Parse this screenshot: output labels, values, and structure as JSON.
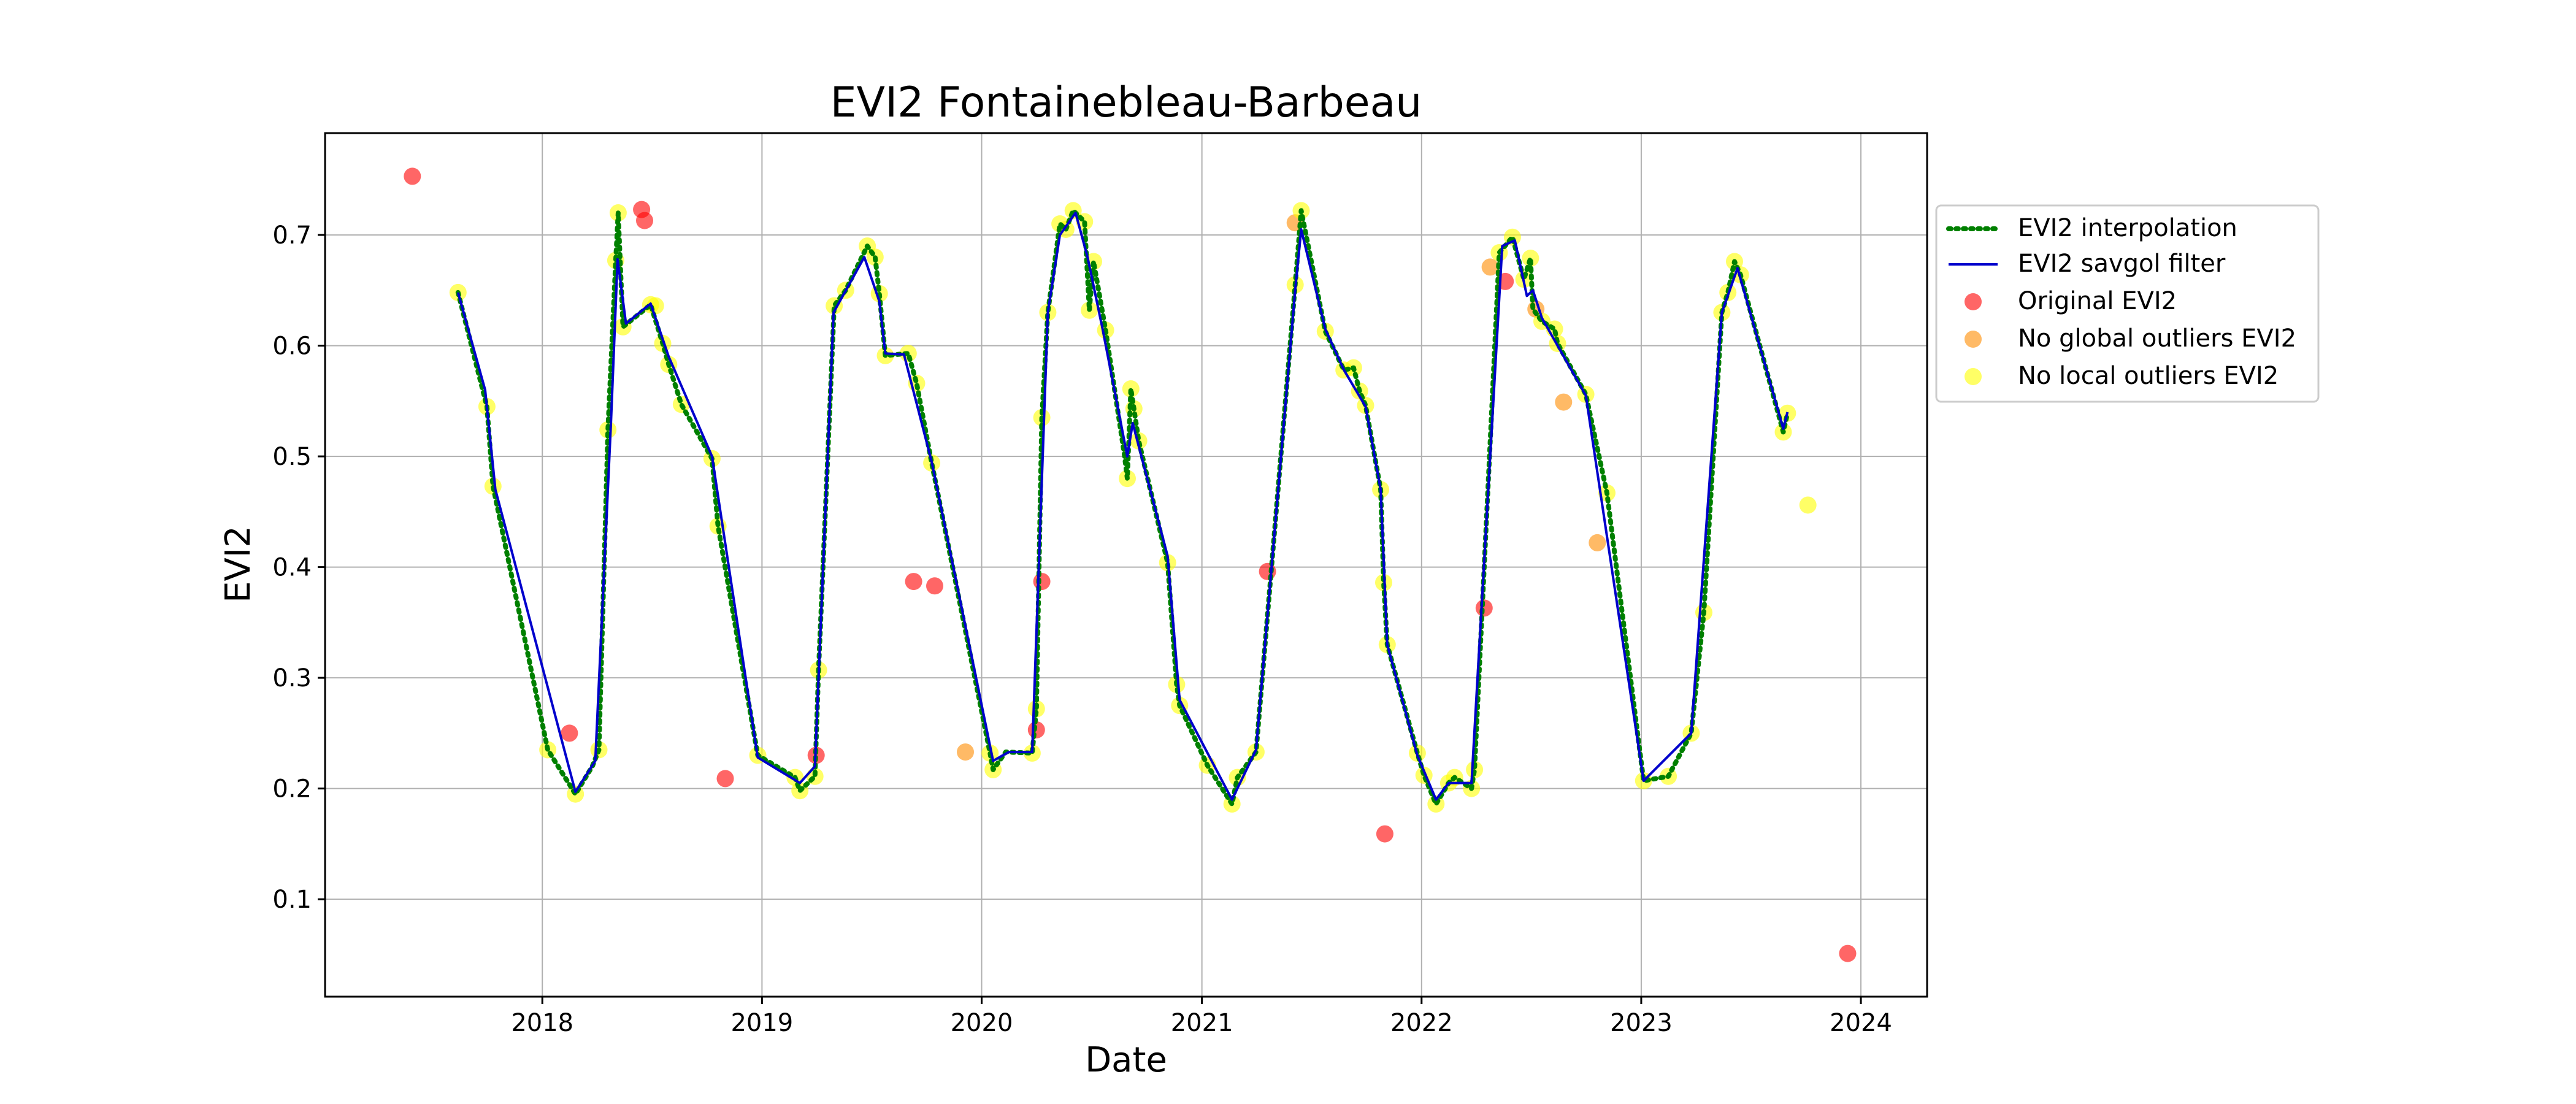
{
  "chart_data": {
    "type": "scatter",
    "title": "EVI2 Fontainebleau-Barbeau",
    "xlabel": "Date",
    "ylabel": "EVI2",
    "xlim": [
      "2017-01-05",
      "2024-04-20"
    ],
    "ylim": [
      0.012,
      0.792
    ],
    "x_ticks": [
      "2018",
      "2019",
      "2020",
      "2021",
      "2022",
      "2023",
      "2024"
    ],
    "y_ticks": [
      "0.1",
      "0.2",
      "0.3",
      "0.4",
      "0.5",
      "0.6",
      "0.7"
    ],
    "grid": true,
    "legend_position": "outside-right",
    "colors": {
      "interpolation": "#008000",
      "savgol": "#0000cc",
      "original": "#ff0000",
      "no_global": "#ff8c00",
      "no_local": "#ffff00",
      "grid": "#b0b0b0"
    },
    "series": [
      {
        "name": "EVI2 interpolation",
        "style": "dotted-line",
        "points": [
          [
            "2017-08-14",
            0.648
          ],
          [
            "2017-10-01",
            0.545
          ],
          [
            "2017-10-11",
            0.473
          ],
          [
            "2018-01-10",
            0.235
          ],
          [
            "2018-02-25",
            0.195
          ],
          [
            "2018-03-25",
            0.22
          ],
          [
            "2018-04-05",
            0.235
          ],
          [
            "2018-04-20",
            0.524
          ],
          [
            "2018-05-03",
            0.677
          ],
          [
            "2018-05-07",
            0.72
          ],
          [
            "2018-05-15",
            0.617
          ],
          [
            "2018-06-30",
            0.637
          ],
          [
            "2018-07-20",
            0.602
          ],
          [
            "2018-07-30",
            0.583
          ],
          [
            "2018-08-20",
            0.547
          ],
          [
            "2018-10-10",
            0.498
          ],
          [
            "2018-10-20",
            0.437
          ],
          [
            "2018-12-25",
            0.23
          ],
          [
            "2019-02-25",
            0.21
          ],
          [
            "2019-03-05",
            0.198
          ],
          [
            "2019-03-30",
            0.211
          ],
          [
            "2019-04-05",
            0.307
          ],
          [
            "2019-05-01",
            0.636
          ],
          [
            "2019-05-20",
            0.65
          ],
          [
            "2019-06-25",
            0.69
          ],
          [
            "2019-07-08",
            0.68
          ],
          [
            "2019-07-15",
            0.647
          ],
          [
            "2019-07-25",
            0.591
          ],
          [
            "2019-09-01",
            0.593
          ],
          [
            "2019-09-15",
            0.566
          ],
          [
            "2019-10-10",
            0.494
          ],
          [
            "2020-01-15",
            0.232
          ],
          [
            "2020-01-20",
            0.217
          ],
          [
            "2020-02-10",
            0.233
          ],
          [
            "2020-03-25",
            0.232
          ],
          [
            "2020-04-01",
            0.272
          ],
          [
            "2020-04-10",
            0.535
          ],
          [
            "2020-04-20",
            0.63
          ],
          [
            "2020-05-10",
            0.71
          ],
          [
            "2020-05-20",
            0.705
          ],
          [
            "2020-06-01",
            0.722
          ],
          [
            "2020-06-20",
            0.712
          ],
          [
            "2020-06-28",
            0.632
          ],
          [
            "2020-07-05",
            0.676
          ],
          [
            "2020-07-25",
            0.614
          ],
          [
            "2020-08-25",
            0.502
          ],
          [
            "2020-08-30",
            0.48
          ],
          [
            "2020-09-05",
            0.561
          ],
          [
            "2020-09-10",
            0.543
          ],
          [
            "2020-09-18",
            0.514
          ],
          [
            "2020-11-05",
            0.404
          ],
          [
            "2020-11-20",
            0.294
          ],
          [
            "2020-11-25",
            0.275
          ],
          [
            "2021-01-10",
            0.221
          ],
          [
            "2021-02-20",
            0.186
          ],
          [
            "2021-03-01",
            0.21
          ],
          [
            "2021-04-01",
            0.233
          ],
          [
            "2021-06-05",
            0.655
          ],
          [
            "2021-06-15",
            0.722
          ],
          [
            "2021-07-25",
            0.613
          ],
          [
            "2021-08-25",
            0.578
          ],
          [
            "2021-09-10",
            0.58
          ],
          [
            "2021-09-20",
            0.559
          ],
          [
            "2021-09-30",
            0.546
          ],
          [
            "2021-10-25",
            0.47
          ],
          [
            "2021-10-30",
            0.386
          ],
          [
            "2021-11-05",
            0.33
          ],
          [
            "2021-12-25",
            0.232
          ],
          [
            "2022-01-05",
            0.212
          ],
          [
            "2022-01-25",
            0.186
          ],
          [
            "2022-02-15",
            0.205
          ],
          [
            "2022-02-25",
            0.21
          ],
          [
            "2022-03-25",
            0.2
          ],
          [
            "2022-03-30",
            0.217
          ],
          [
            "2022-05-10",
            0.684
          ],
          [
            "2022-06-01",
            0.698
          ],
          [
            "2022-06-20",
            0.66
          ],
          [
            "2022-07-01",
            0.679
          ],
          [
            "2022-07-05",
            0.633
          ],
          [
            "2022-07-20",
            0.622
          ],
          [
            "2022-08-10",
            0.615
          ],
          [
            "2022-08-15",
            0.602
          ],
          [
            "2022-10-01",
            0.556
          ],
          [
            "2022-11-05",
            0.467
          ],
          [
            "2023-01-05",
            0.207
          ],
          [
            "2023-02-15",
            0.211
          ],
          [
            "2023-03-25",
            0.25
          ],
          [
            "2023-04-15",
            0.359
          ],
          [
            "2023-05-15",
            0.63
          ],
          [
            "2023-05-25",
            0.648
          ],
          [
            "2023-06-05",
            0.676
          ],
          [
            "2023-06-15",
            0.664
          ],
          [
            "2023-08-25",
            0.522
          ],
          [
            "2023-09-01",
            0.539
          ]
        ]
      },
      {
        "name": "EVI2 savgol filter",
        "style": "solid-line",
        "points": [
          [
            "2017-08-14",
            0.648
          ],
          [
            "2017-09-28",
            0.56
          ],
          [
            "2017-10-15",
            0.47
          ],
          [
            "2018-02-25",
            0.197
          ],
          [
            "2018-03-30",
            0.225
          ],
          [
            "2018-04-25",
            0.53
          ],
          [
            "2018-05-06",
            0.678
          ],
          [
            "2018-05-20",
            0.62
          ],
          [
            "2018-06-30",
            0.638
          ],
          [
            "2018-07-30",
            0.59
          ],
          [
            "2018-10-10",
            0.5
          ],
          [
            "2018-12-25",
            0.228
          ],
          [
            "2019-03-05",
            0.205
          ],
          [
            "2019-03-30",
            0.22
          ],
          [
            "2019-04-30",
            0.63
          ],
          [
            "2019-06-20",
            0.68
          ],
          [
            "2019-07-15",
            0.64
          ],
          [
            "2019-07-25",
            0.593
          ],
          [
            "2019-08-25",
            0.592
          ],
          [
            "2019-10-10",
            0.495
          ],
          [
            "2020-01-20",
            0.225
          ],
          [
            "2020-02-15",
            0.233
          ],
          [
            "2020-03-25",
            0.233
          ],
          [
            "2020-04-20",
            0.63
          ],
          [
            "2020-05-10",
            0.7
          ],
          [
            "2020-06-05",
            0.72
          ],
          [
            "2020-06-25",
            0.68
          ],
          [
            "2020-07-20",
            0.615
          ],
          [
            "2020-08-30",
            0.5
          ],
          [
            "2020-09-08",
            0.53
          ],
          [
            "2020-11-05",
            0.41
          ],
          [
            "2020-11-25",
            0.28
          ],
          [
            "2021-02-20",
            0.19
          ],
          [
            "2021-04-01",
            0.235
          ],
          [
            "2021-06-05",
            0.65
          ],
          [
            "2021-06-15",
            0.705
          ],
          [
            "2021-07-25",
            0.615
          ],
          [
            "2021-08-25",
            0.578
          ],
          [
            "2021-09-30",
            0.545
          ],
          [
            "2021-10-25",
            0.47
          ],
          [
            "2021-11-05",
            0.33
          ],
          [
            "2021-12-25",
            0.23
          ],
          [
            "2022-01-25",
            0.19
          ],
          [
            "2022-02-15",
            0.205
          ],
          [
            "2022-03-25",
            0.205
          ],
          [
            "2022-05-15",
            0.69
          ],
          [
            "2022-06-05",
            0.695
          ],
          [
            "2022-06-25",
            0.645
          ],
          [
            "2022-07-05",
            0.65
          ],
          [
            "2022-07-20",
            0.625
          ],
          [
            "2022-10-01",
            0.555
          ],
          [
            "2023-01-05",
            0.207
          ],
          [
            "2023-03-25",
            0.25
          ],
          [
            "2023-05-15",
            0.63
          ],
          [
            "2023-06-10",
            0.67
          ],
          [
            "2023-08-25",
            0.525
          ],
          [
            "2023-09-01",
            0.54
          ]
        ]
      },
      {
        "name": "Original EVI2",
        "style": "marker",
        "points": [
          [
            "2017-05-30",
            0.753
          ],
          [
            "2018-02-15",
            0.25
          ],
          [
            "2018-06-15",
            0.723
          ],
          [
            "2018-06-20",
            0.713
          ],
          [
            "2018-11-01",
            0.209
          ],
          [
            "2019-04-01",
            0.23
          ],
          [
            "2019-09-10",
            0.387
          ],
          [
            "2019-10-15",
            0.383
          ],
          [
            "2020-04-01",
            0.253
          ],
          [
            "2020-04-10",
            0.387
          ],
          [
            "2021-04-20",
            0.396
          ],
          [
            "2021-11-01",
            0.159
          ],
          [
            "2022-04-15",
            0.363
          ],
          [
            "2022-05-20",
            0.658
          ],
          [
            "2023-12-10",
            0.051
          ]
        ]
      },
      {
        "name": "No global outliers EVI2",
        "style": "marker",
        "points": [
          [
            "2019-12-05",
            0.233
          ],
          [
            "2021-06-05",
            0.711
          ],
          [
            "2022-04-25",
            0.671
          ],
          [
            "2022-07-10",
            0.633
          ],
          [
            "2022-08-25",
            0.549
          ],
          [
            "2022-10-20",
            0.422
          ]
        ]
      },
      {
        "name": "No local outliers EVI2",
        "style": "marker",
        "points": [
          [
            "2017-08-14",
            0.648
          ],
          [
            "2017-10-01",
            0.545
          ],
          [
            "2017-10-11",
            0.473
          ],
          [
            "2018-01-10",
            0.235
          ],
          [
            "2018-02-25",
            0.195
          ],
          [
            "2018-04-05",
            0.235
          ],
          [
            "2018-04-20",
            0.524
          ],
          [
            "2018-05-03",
            0.677
          ],
          [
            "2018-05-07",
            0.72
          ],
          [
            "2018-05-15",
            0.617
          ],
          [
            "2018-06-30",
            0.637
          ],
          [
            "2018-07-08",
            0.636
          ],
          [
            "2018-07-20",
            0.602
          ],
          [
            "2018-07-30",
            0.583
          ],
          [
            "2018-08-20",
            0.547
          ],
          [
            "2018-10-10",
            0.498
          ],
          [
            "2018-10-20",
            0.437
          ],
          [
            "2018-12-25",
            0.23
          ],
          [
            "2019-02-25",
            0.21
          ],
          [
            "2019-03-05",
            0.198
          ],
          [
            "2019-03-30",
            0.211
          ],
          [
            "2019-04-05",
            0.307
          ],
          [
            "2019-05-01",
            0.636
          ],
          [
            "2019-05-20",
            0.65
          ],
          [
            "2019-06-25",
            0.69
          ],
          [
            "2019-07-08",
            0.68
          ],
          [
            "2019-07-15",
            0.647
          ],
          [
            "2019-07-25",
            0.591
          ],
          [
            "2019-09-01",
            0.593
          ],
          [
            "2019-09-15",
            0.566
          ],
          [
            "2019-10-10",
            0.494
          ],
          [
            "2020-01-15",
            0.232
          ],
          [
            "2020-01-20",
            0.217
          ],
          [
            "2020-03-25",
            0.232
          ],
          [
            "2020-04-01",
            0.272
          ],
          [
            "2020-04-10",
            0.535
          ],
          [
            "2020-04-20",
            0.63
          ],
          [
            "2020-05-10",
            0.71
          ],
          [
            "2020-05-20",
            0.705
          ],
          [
            "2020-06-01",
            0.722
          ],
          [
            "2020-06-20",
            0.712
          ],
          [
            "2020-06-28",
            0.632
          ],
          [
            "2020-07-05",
            0.676
          ],
          [
            "2020-07-25",
            0.614
          ],
          [
            "2020-08-30",
            0.48
          ],
          [
            "2020-09-05",
            0.561
          ],
          [
            "2020-09-10",
            0.543
          ],
          [
            "2020-09-18",
            0.514
          ],
          [
            "2020-11-05",
            0.404
          ],
          [
            "2020-11-20",
            0.294
          ],
          [
            "2020-11-25",
            0.275
          ],
          [
            "2021-01-10",
            0.221
          ],
          [
            "2021-02-20",
            0.186
          ],
          [
            "2021-03-01",
            0.21
          ],
          [
            "2021-04-01",
            0.233
          ],
          [
            "2021-06-05",
            0.655
          ],
          [
            "2021-06-15",
            0.722
          ],
          [
            "2021-07-25",
            0.613
          ],
          [
            "2021-08-25",
            0.578
          ],
          [
            "2021-09-10",
            0.58
          ],
          [
            "2021-09-20",
            0.559
          ],
          [
            "2021-09-30",
            0.546
          ],
          [
            "2021-10-25",
            0.47
          ],
          [
            "2021-10-30",
            0.386
          ],
          [
            "2021-11-05",
            0.33
          ],
          [
            "2021-12-25",
            0.232
          ],
          [
            "2022-01-05",
            0.212
          ],
          [
            "2022-01-25",
            0.186
          ],
          [
            "2022-02-15",
            0.205
          ],
          [
            "2022-02-25",
            0.21
          ],
          [
            "2022-03-25",
            0.2
          ],
          [
            "2022-03-30",
            0.217
          ],
          [
            "2022-05-10",
            0.684
          ],
          [
            "2022-06-01",
            0.698
          ],
          [
            "2022-06-20",
            0.66
          ],
          [
            "2022-07-01",
            0.679
          ],
          [
            "2022-07-20",
            0.622
          ],
          [
            "2022-08-10",
            0.615
          ],
          [
            "2022-08-15",
            0.602
          ],
          [
            "2022-10-01",
            0.556
          ],
          [
            "2022-11-05",
            0.467
          ],
          [
            "2023-01-05",
            0.207
          ],
          [
            "2023-02-15",
            0.211
          ],
          [
            "2023-03-25",
            0.25
          ],
          [
            "2023-04-15",
            0.359
          ],
          [
            "2023-05-15",
            0.63
          ],
          [
            "2023-05-25",
            0.648
          ],
          [
            "2023-06-05",
            0.676
          ],
          [
            "2023-06-15",
            0.664
          ],
          [
            "2023-08-25",
            0.522
          ],
          [
            "2023-09-01",
            0.539
          ],
          [
            "2023-10-05",
            0.456
          ]
        ]
      }
    ]
  }
}
